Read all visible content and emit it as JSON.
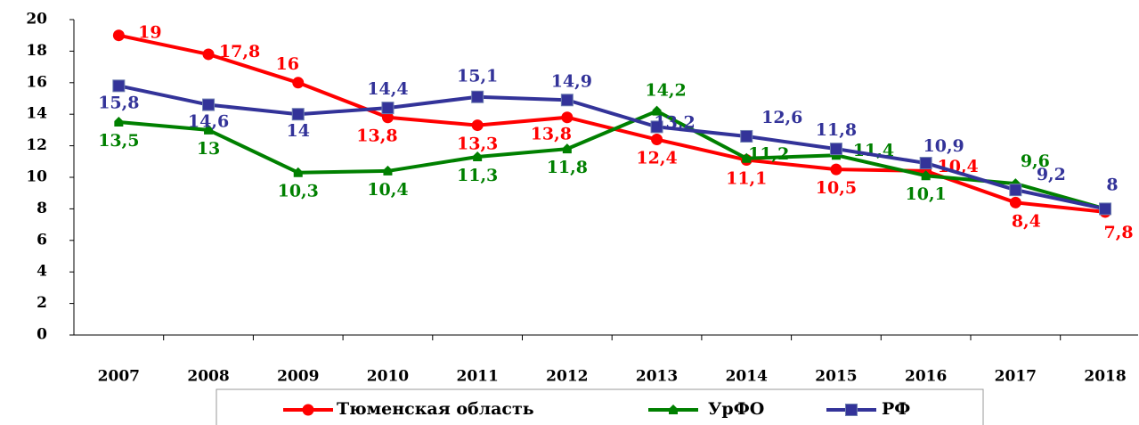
{
  "chart_data": {
    "type": "line",
    "categories": [
      "2007",
      "2008",
      "2009",
      "2010",
      "2011",
      "2012",
      "2013",
      "2014",
      "2015",
      "2016",
      "2017",
      "2018"
    ],
    "series": [
      {
        "name": "Тюменская область",
        "color": "#ff0000",
        "marker": "circle",
        "values": [
          19,
          17.8,
          16,
          13.8,
          13.3,
          13.8,
          12.4,
          11.1,
          10.5,
          10.4,
          8.4,
          7.8
        ],
        "value_labels": [
          "19",
          "17,8",
          "16",
          "13,8",
          "13,3",
          "13,8",
          "12,4",
          "11,1",
          "10,5",
          "10,4",
          "8,4",
          "7,8"
        ]
      },
      {
        "name": "УрФО",
        "color": "#008000",
        "marker": "triangle",
        "values": [
          13.5,
          13,
          10.3,
          10.4,
          11.3,
          11.8,
          14.2,
          11.2,
          11.4,
          10.1,
          9.6,
          8
        ],
        "value_labels": [
          "13,5",
          "13",
          "10,3",
          "10,4",
          "11,3",
          "11,8",
          "14,2",
          "11,2",
          "11,4",
          "10,1",
          "9,6",
          null
        ]
      },
      {
        "name": "РФ",
        "color": "#333399",
        "marker": "square",
        "values": [
          15.8,
          14.6,
          14,
          14.4,
          15.1,
          14.9,
          13.2,
          12.6,
          11.8,
          10.9,
          9.2,
          8
        ],
        "value_labels": [
          "15,8",
          "14,6",
          "14",
          "14,4",
          "15,1",
          "14,9",
          "13,2",
          "12,6",
          "11,8",
          "10,9",
          "9,2",
          "8"
        ]
      }
    ],
    "ylim": [
      0,
      20
    ],
    "yticks": [
      0,
      2,
      4,
      6,
      8,
      10,
      12,
      14,
      16,
      18,
      20
    ],
    "grid": false
  }
}
